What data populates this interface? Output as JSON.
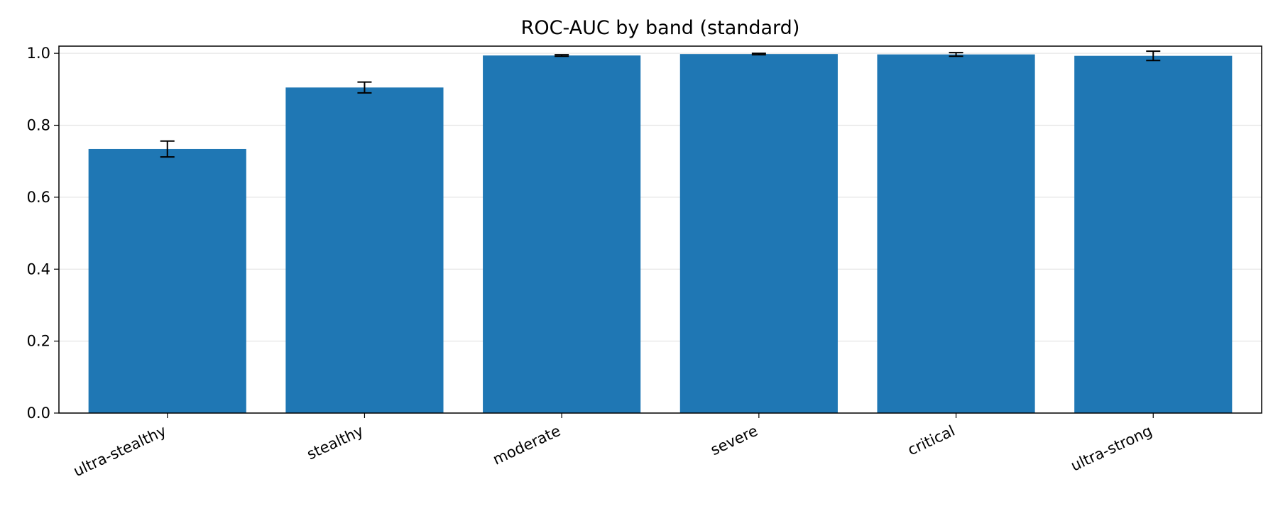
{
  "chart_data": {
    "type": "bar",
    "title": "ROC-AUC by band (standard)",
    "xlabel": "",
    "ylabel": "",
    "categories": [
      "ultra-stealthy",
      "stealthy",
      "moderate",
      "severe",
      "critical",
      "ultra-strong"
    ],
    "values": [
      0.734,
      0.905,
      0.994,
      0.998,
      0.997,
      0.993
    ],
    "errors": [
      0.022,
      0.015,
      0.002,
      0.002,
      0.005,
      0.013
    ],
    "ylim": [
      0,
      1.02
    ],
    "yticks": [
      "0.0",
      "0.2",
      "0.4",
      "0.6",
      "0.8",
      "1.0"
    ],
    "grid": "y",
    "bar_color": "#1f77b4",
    "error_color": "#000000",
    "grid_color": "#e6e6e6"
  }
}
